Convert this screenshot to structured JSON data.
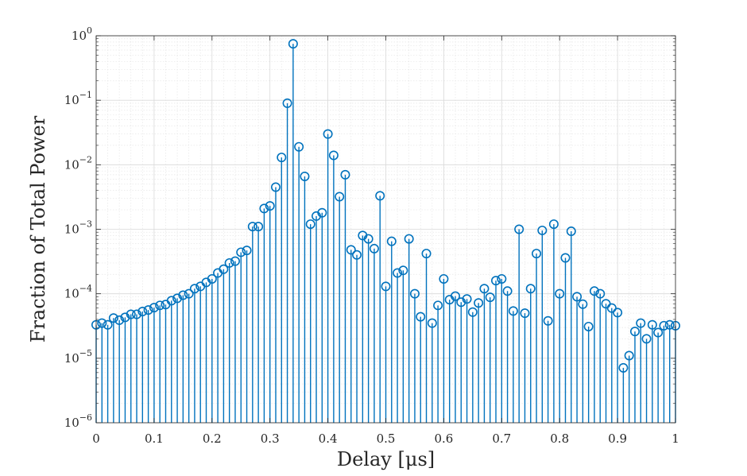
{
  "chart_data": {
    "type": "stem",
    "xlabel": "Delay [μs]",
    "ylabel": "Fraction of Total Power",
    "xlim": [
      0,
      1
    ],
    "ylim": [
      1e-06,
      1
    ],
    "yscale": "log",
    "grid": true,
    "minor_grid": true,
    "legend": "none",
    "marker": "open-circle",
    "color": "#0072BD",
    "x_ticks": [
      {
        "value": 0,
        "label": "0"
      },
      {
        "value": 0.1,
        "label": "0.1"
      },
      {
        "value": 0.2,
        "label": "0.2"
      },
      {
        "value": 0.3,
        "label": "0.3"
      },
      {
        "value": 0.4,
        "label": "0.4"
      },
      {
        "value": 0.5,
        "label": "0.5"
      },
      {
        "value": 0.6,
        "label": "0.6"
      },
      {
        "value": 0.7,
        "label": "0.7"
      },
      {
        "value": 0.8,
        "label": "0.8"
      },
      {
        "value": 0.9,
        "label": "0.9"
      },
      {
        "value": 1,
        "label": "1"
      }
    ],
    "y_ticks": [
      {
        "value": 1,
        "base": "10",
        "exp": "0"
      },
      {
        "value": 0.1,
        "base": "10",
        "exp": "−1"
      },
      {
        "value": 0.01,
        "base": "10",
        "exp": "−2"
      },
      {
        "value": 0.001,
        "base": "10",
        "exp": "−3"
      },
      {
        "value": 0.0001,
        "base": "10",
        "exp": "−4"
      },
      {
        "value": 1e-05,
        "base": "10",
        "exp": "−5"
      },
      {
        "value": 1e-06,
        "base": "10",
        "exp": "−6"
      }
    ],
    "x": [
      0,
      0.01,
      0.02,
      0.03,
      0.04,
      0.05,
      0.06,
      0.07,
      0.08,
      0.09,
      0.1,
      0.11,
      0.12,
      0.13,
      0.14,
      0.15,
      0.16,
      0.17,
      0.18,
      0.19,
      0.2,
      0.21,
      0.22,
      0.23,
      0.24,
      0.25,
      0.26,
      0.27,
      0.28,
      0.29,
      0.3,
      0.31,
      0.32,
      0.33,
      0.34,
      0.35,
      0.36,
      0.37,
      0.38,
      0.39,
      0.4,
      0.41,
      0.42,
      0.43,
      0.44,
      0.45,
      0.46,
      0.47,
      0.48,
      0.49,
      0.5,
      0.51,
      0.52,
      0.53,
      0.54,
      0.55,
      0.56,
      0.57,
      0.58,
      0.59,
      0.6,
      0.61,
      0.62,
      0.63,
      0.64,
      0.65,
      0.66,
      0.67,
      0.68,
      0.69,
      0.7,
      0.71,
      0.72,
      0.73,
      0.74,
      0.75,
      0.76,
      0.77,
      0.78,
      0.79,
      0.8,
      0.81,
      0.82,
      0.83,
      0.84,
      0.85,
      0.86,
      0.87,
      0.88,
      0.89,
      0.9,
      0.91,
      0.92,
      0.93,
      0.94,
      0.95,
      0.96,
      0.97,
      0.98,
      0.99,
      1.0
    ],
    "y": [
      3.3e-05,
      3.5e-05,
      3.3e-05,
      4.2e-05,
      3.9e-05,
      4.3e-05,
      4.8e-05,
      4.8e-05,
      5.3e-05,
      5.6e-05,
      6.1e-05,
      6.6e-05,
      6.8e-05,
      7.8e-05,
      8.5e-05,
      9.5e-05,
      0.0001,
      0.00012,
      0.00013,
      0.00015,
      0.00017,
      0.00021,
      0.00024,
      0.0003,
      0.00032,
      0.00044,
      0.00047,
      0.0011,
      0.0011,
      0.0021,
      0.0023,
      0.0045,
      0.013,
      0.09,
      0.75,
      0.019,
      0.0066,
      0.0012,
      0.0016,
      0.0018,
      0.03,
      0.014,
      0.0032,
      0.007,
      0.00048,
      0.0004,
      0.0008,
      0.00071,
      0.0005,
      0.0033,
      0.00013,
      0.00065,
      0.00021,
      0.00023,
      0.00071,
      0.0001,
      4.4e-05,
      0.00042,
      3.5e-05,
      6.6e-05,
      0.00017,
      8.1e-05,
      9.2e-05,
      7.4e-05,
      8.3e-05,
      5.2e-05,
      7.2e-05,
      0.00012,
      8.8e-05,
      0.00016,
      0.00017,
      0.00011,
      5.4e-05,
      0.001,
      5e-05,
      0.00012,
      0.00042,
      0.00096,
      3.8e-05,
      0.0012,
      0.0001,
      0.00036,
      0.00093,
      9e-05,
      6.9e-05,
      3.1e-05,
      0.00011,
      0.0001,
      7e-05,
      6e-05,
      5.1e-05,
      7.1e-06,
      1.1e-05,
      2.6e-05,
      3.5e-05,
      2e-05,
      3.3e-05,
      2.5e-05,
      3.2e-05,
      3.3e-05,
      3.2e-05
    ]
  }
}
